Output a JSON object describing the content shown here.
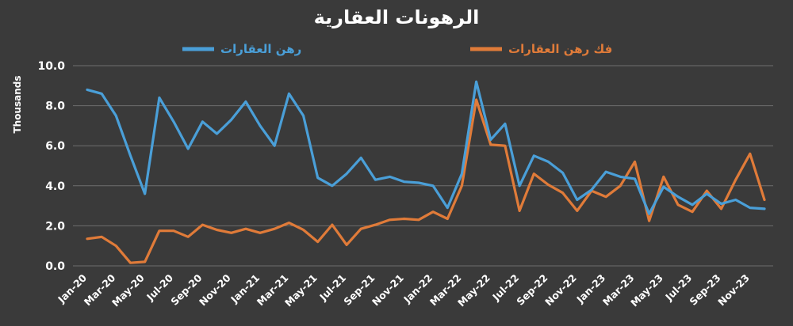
{
  "chart_data": {
    "type": "line",
    "title": "الرهونات العقارية",
    "ylabel": "Thousands",
    "ylim": [
      0,
      10
    ],
    "yticks": [
      "0.0",
      "2.0",
      "4.0",
      "6.0",
      "8.0",
      "10.0"
    ],
    "grid": true,
    "legend_position": "top",
    "x": [
      "Jan-20",
      "Feb-20",
      "Mar-20",
      "Apr-20",
      "May-20",
      "Jun-20",
      "Jul-20",
      "Aug-20",
      "Sep-20",
      "Oct-20",
      "Nov-20",
      "Dec-20",
      "Jan-21",
      "Feb-21",
      "Mar-21",
      "Apr-21",
      "May-21",
      "Jun-21",
      "Jul-21",
      "Aug-21",
      "Sep-21",
      "Oct-21",
      "Nov-21",
      "Dec-21",
      "Jan-22",
      "Feb-22",
      "Mar-22",
      "Apr-22",
      "May-22",
      "Jun-22",
      "Jul-22",
      "Aug-22",
      "Sep-22",
      "Oct-22",
      "Nov-22",
      "Dec-22",
      "Jan-23",
      "Feb-23",
      "Mar-23",
      "Apr-23",
      "May-23",
      "Jun-23",
      "Jul-23",
      "Aug-23",
      "Sep-23",
      "Oct-23",
      "Nov-23",
      "Dec-23"
    ],
    "xtick_labels": [
      "Jan-20",
      "Mar-20",
      "May-20",
      "Jul-20",
      "Sep-20",
      "Nov-20",
      "Jan-21",
      "Mar-21",
      "May-21",
      "Jul-21",
      "Sep-21",
      "Nov-21",
      "Jan-22",
      "Mar-22",
      "May-22",
      "Jul-22",
      "Sep-22",
      "Nov-22",
      "Jan-23",
      "Mar-23",
      "May-23",
      "Jul-23",
      "Sep-23",
      "Nov-23"
    ],
    "series": [
      {
        "name": "رهن العقارات",
        "color": "#4a9fd8",
        "values": [
          8.8,
          8.6,
          7.5,
          5.5,
          3.6,
          8.4,
          7.2,
          5.85,
          7.2,
          6.6,
          7.3,
          8.2,
          7.0,
          6.0,
          8.6,
          7.5,
          4.4,
          4.0,
          4.6,
          5.4,
          4.3,
          4.45,
          4.2,
          4.15,
          4.0,
          2.9,
          4.6,
          9.2,
          6.3,
          7.1,
          4.0,
          5.5,
          5.2,
          4.65,
          3.3,
          3.8,
          4.7,
          4.45,
          4.35,
          2.6,
          3.95,
          3.45,
          3.05,
          3.6,
          3.1,
          3.3,
          2.9,
          2.85
        ]
      },
      {
        "name": "فك رهن العقارات",
        "color": "#e07b39",
        "values": [
          1.35,
          1.45,
          1.0,
          0.15,
          0.2,
          1.75,
          1.75,
          1.45,
          2.05,
          1.8,
          1.65,
          1.85,
          1.65,
          1.85,
          2.15,
          1.8,
          1.2,
          2.05,
          1.05,
          1.85,
          2.05,
          2.3,
          2.35,
          2.3,
          2.7,
          2.35,
          4.0,
          8.3,
          6.05,
          6.0,
          2.75,
          4.6,
          4.05,
          3.65,
          2.75,
          3.75,
          3.45,
          4.0,
          5.2,
          2.25,
          4.45,
          3.05,
          2.7,
          3.75,
          2.85,
          4.3,
          5.6,
          3.3
        ]
      }
    ]
  }
}
